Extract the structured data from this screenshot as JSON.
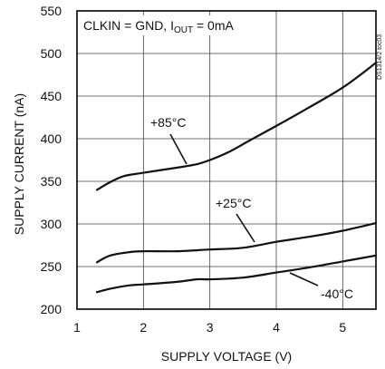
{
  "chart_data": {
    "type": "line",
    "condition": {
      "prefix": "CLKIN = GND, I",
      "subscript": "OUT",
      "suffix": " = 0mA"
    },
    "xlabel": "SUPPLY VOLTAGE (V)",
    "ylabel": "SUPPLY CURRENT (nA)",
    "side_label": "DS1314/2 toc03",
    "xlim": [
      1,
      5.5
    ],
    "ylim": [
      200,
      550
    ],
    "xticks": [
      1,
      2,
      3,
      4,
      5
    ],
    "yticks": [
      200,
      250,
      300,
      350,
      400,
      450,
      500,
      550
    ],
    "grid": true,
    "series": [
      {
        "name": "+85°C",
        "points": [
          [
            1.3,
            340
          ],
          [
            1.5,
            349
          ],
          [
            1.7,
            356
          ],
          [
            2.0,
            360
          ],
          [
            2.5,
            366
          ],
          [
            2.8,
            370
          ],
          [
            3.0,
            375
          ],
          [
            3.3,
            385
          ],
          [
            3.6,
            398
          ],
          [
            4.0,
            415
          ],
          [
            4.5,
            437
          ],
          [
            5.0,
            460
          ],
          [
            5.5,
            489
          ]
        ]
      },
      {
        "name": "+25°C",
        "points": [
          [
            1.3,
            255
          ],
          [
            1.5,
            263
          ],
          [
            1.8,
            267
          ],
          [
            2.0,
            268
          ],
          [
            2.5,
            268
          ],
          [
            3.0,
            270
          ],
          [
            3.5,
            272
          ],
          [
            4.0,
            279
          ],
          [
            4.5,
            285
          ],
          [
            5.0,
            292
          ],
          [
            5.5,
            301
          ]
        ]
      },
      {
        "name": "-40°C",
        "points": [
          [
            1.3,
            220
          ],
          [
            1.5,
            224
          ],
          [
            1.8,
            228
          ],
          [
            2.0,
            229
          ],
          [
            2.5,
            232
          ],
          [
            2.8,
            235
          ],
          [
            3.0,
            235
          ],
          [
            3.5,
            237
          ],
          [
            4.0,
            243
          ],
          [
            4.5,
            249
          ],
          [
            5.0,
            256
          ],
          [
            5.5,
            263
          ]
        ]
      }
    ]
  }
}
